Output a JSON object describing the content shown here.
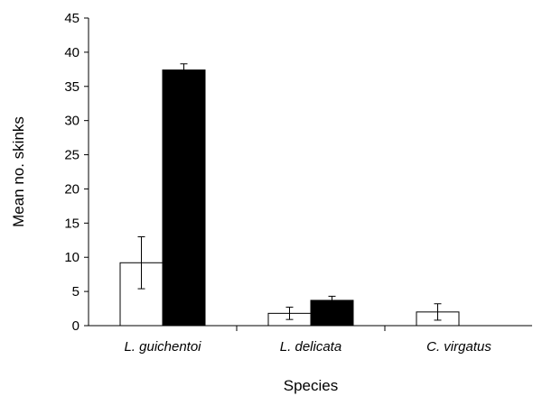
{
  "chart_data": {
    "type": "bar",
    "xlabel": "Species",
    "ylabel": "Mean no. skinks",
    "ylim": [
      0,
      45
    ],
    "yticks": [
      0,
      5,
      10,
      15,
      20,
      25,
      30,
      35,
      40,
      45
    ],
    "categories": [
      "L. guichentoi",
      "L. delicata",
      "C. virgatus"
    ],
    "grid": false,
    "legend": "none",
    "series": [
      {
        "fill": "#ffffff",
        "values": [
          9.2,
          1.8,
          2.0
        ],
        "error": [
          3.8,
          0.9,
          1.2
        ]
      },
      {
        "fill": "#000000",
        "values": [
          37.4,
          3.7,
          null
        ],
        "error": [
          0.9,
          0.6,
          null
        ]
      }
    ]
  }
}
